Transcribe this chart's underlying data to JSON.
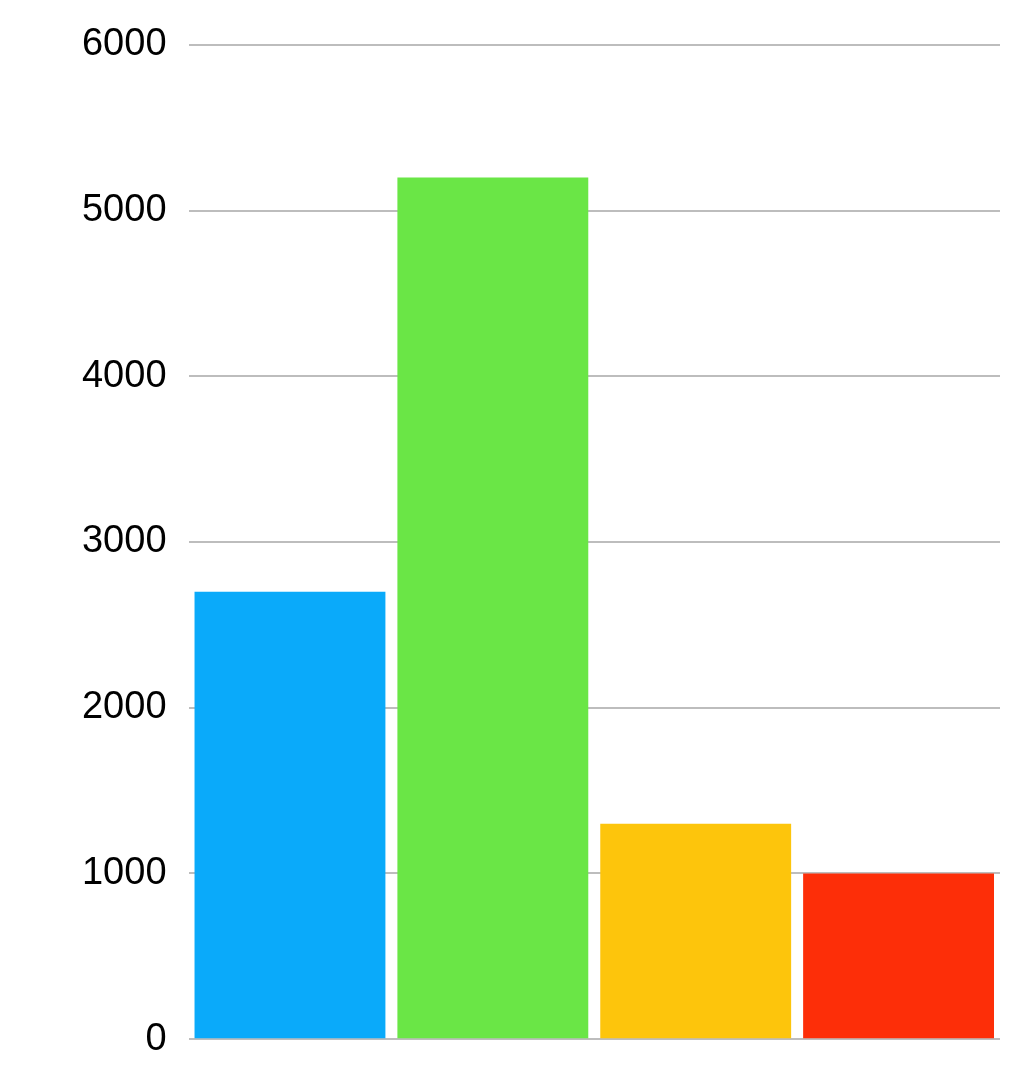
{
  "chart_data": {
    "type": "bar",
    "categories": [
      null,
      null,
      null,
      null
    ],
    "values": [
      2700,
      5200,
      1300,
      1000
    ],
    "colors": [
      "#0aaafa",
      "#6ae646",
      "#fdc50c",
      "#fd2e08"
    ],
    "ylim": [
      0,
      6000
    ],
    "yticks": [
      0,
      1000,
      2000,
      3000,
      4000,
      5000,
      6000
    ],
    "grid": "y",
    "tick_labels": "y"
  }
}
